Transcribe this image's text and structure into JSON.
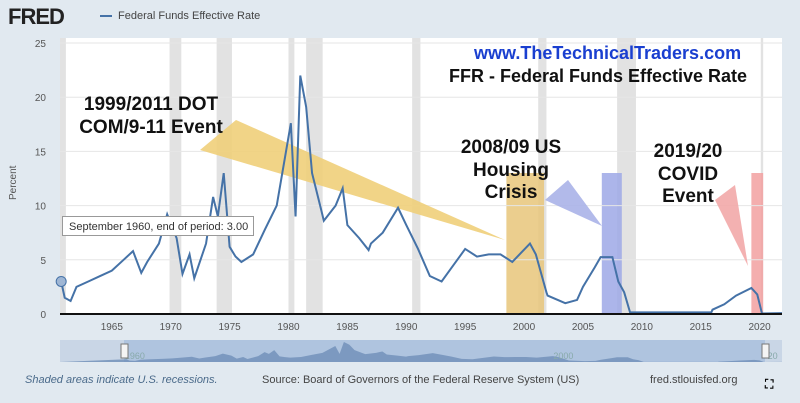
{
  "header": {
    "logo": "FRED",
    "legend_label": "Federal Funds Effective Rate"
  },
  "watermark": {
    "site": "www.TheTechnicalTraders.com",
    "title": "FFR - Federal Funds Effective Rate"
  },
  "callouts": [
    {
      "text": "1999/2011 DOT COM/9-11 Event",
      "color": "#f0cf7a"
    },
    {
      "text": "2008/09 US Housing Crisis",
      "color": "#aab3e8"
    },
    {
      "text": "2019/20 COVID Event",
      "color": "#f2a8a8"
    }
  ],
  "tooltip": "September 1960, end of period: 3.00",
  "footer": {
    "note": "Shaded areas indicate U.S. recessions.",
    "source": "Source: Board of Governors of the Federal Reserve System (US)",
    "site": "fred.stlouisfed.org"
  },
  "navigator": {
    "labels": [
      "1960",
      "2000",
      "20"
    ]
  },
  "chart_data": {
    "type": "line",
    "title": "",
    "xlabel": "",
    "ylabel": "Percent",
    "xlim": [
      1960.6,
      2021.9
    ],
    "ylim": [
      0,
      25
    ],
    "yticks": [
      0,
      5,
      10,
      15,
      20,
      25
    ],
    "xticks": [
      1965,
      1970,
      1975,
      1980,
      1985,
      1990,
      1995,
      2000,
      2005,
      2010,
      2015,
      2020
    ],
    "line_color": "#4572a7",
    "recessions": [
      [
        1960.3,
        1961.1
      ],
      [
        1969.9,
        1970.9
      ],
      [
        1973.9,
        1975.2
      ],
      [
        1980.0,
        1980.5
      ],
      [
        1981.5,
        1982.9
      ],
      [
        1990.5,
        1991.2
      ],
      [
        2001.2,
        2001.9
      ],
      [
        2007.9,
        2009.5
      ],
      [
        2020.1,
        2020.3
      ]
    ],
    "highlight_bands": [
      {
        "range": [
          1998.5,
          2001.7
        ],
        "color": "#e8c57a"
      },
      {
        "range": [
          2006.6,
          2008.3
        ],
        "color": "#9ea8e6"
      },
      {
        "range": [
          2019.3,
          2020.3
        ],
        "color": "#f2a0a0"
      }
    ],
    "series": [
      {
        "x": [
          1960.7,
          1961,
          1961.5,
          1962,
          1963,
          1964,
          1965,
          1966,
          1966.8,
          1967.5,
          1968,
          1969,
          1969.7,
          1970.5,
          1971,
          1971.6,
          1972,
          1973,
          1973.6,
          1974,
          1974.5,
          1975,
          1975.5,
          1976,
          1977,
          1978,
          1979,
          1980.2,
          1980.6,
          1981,
          1981.5,
          1982,
          1982.8,
          1983,
          1984,
          1984.6,
          1985,
          1986,
          1986.8,
          1987,
          1988,
          1989.3,
          1990,
          1991,
          1992,
          1993,
          1994,
          1995,
          1996,
          1997,
          1998,
          1999,
          2000.5,
          2001,
          2001.9,
          2002,
          2003.5,
          2004.5,
          2005,
          2006,
          2006.5,
          2007.5,
          2008,
          2008.5,
          2009,
          2015.9,
          2016,
          2017,
          2018,
          2019.3,
          2019.8,
          2020.2,
          2021.9
        ],
        "y": [
          3.0,
          1.5,
          1.2,
          2.5,
          3.0,
          3.5,
          4.0,
          5.0,
          5.8,
          3.8,
          4.8,
          6.5,
          9.2,
          7.0,
          3.7,
          5.5,
          3.3,
          6.5,
          10.8,
          9.0,
          13.0,
          6.2,
          5.3,
          4.8,
          5.5,
          7.8,
          10.0,
          17.6,
          9.0,
          22.0,
          19.1,
          13.0,
          9.5,
          8.6,
          10.0,
          11.6,
          8.2,
          7.0,
          5.9,
          6.5,
          7.5,
          9.8,
          8.2,
          6.0,
          3.5,
          3.0,
          4.5,
          6.0,
          5.3,
          5.5,
          5.5,
          4.8,
          6.5,
          5.5,
          2.0,
          1.7,
          1.0,
          1.3,
          2.5,
          4.3,
          5.25,
          5.25,
          3.0,
          2.0,
          0.15,
          0.15,
          0.4,
          0.9,
          1.7,
          2.4,
          1.8,
          0.05,
          0.08
        ]
      }
    ]
  }
}
